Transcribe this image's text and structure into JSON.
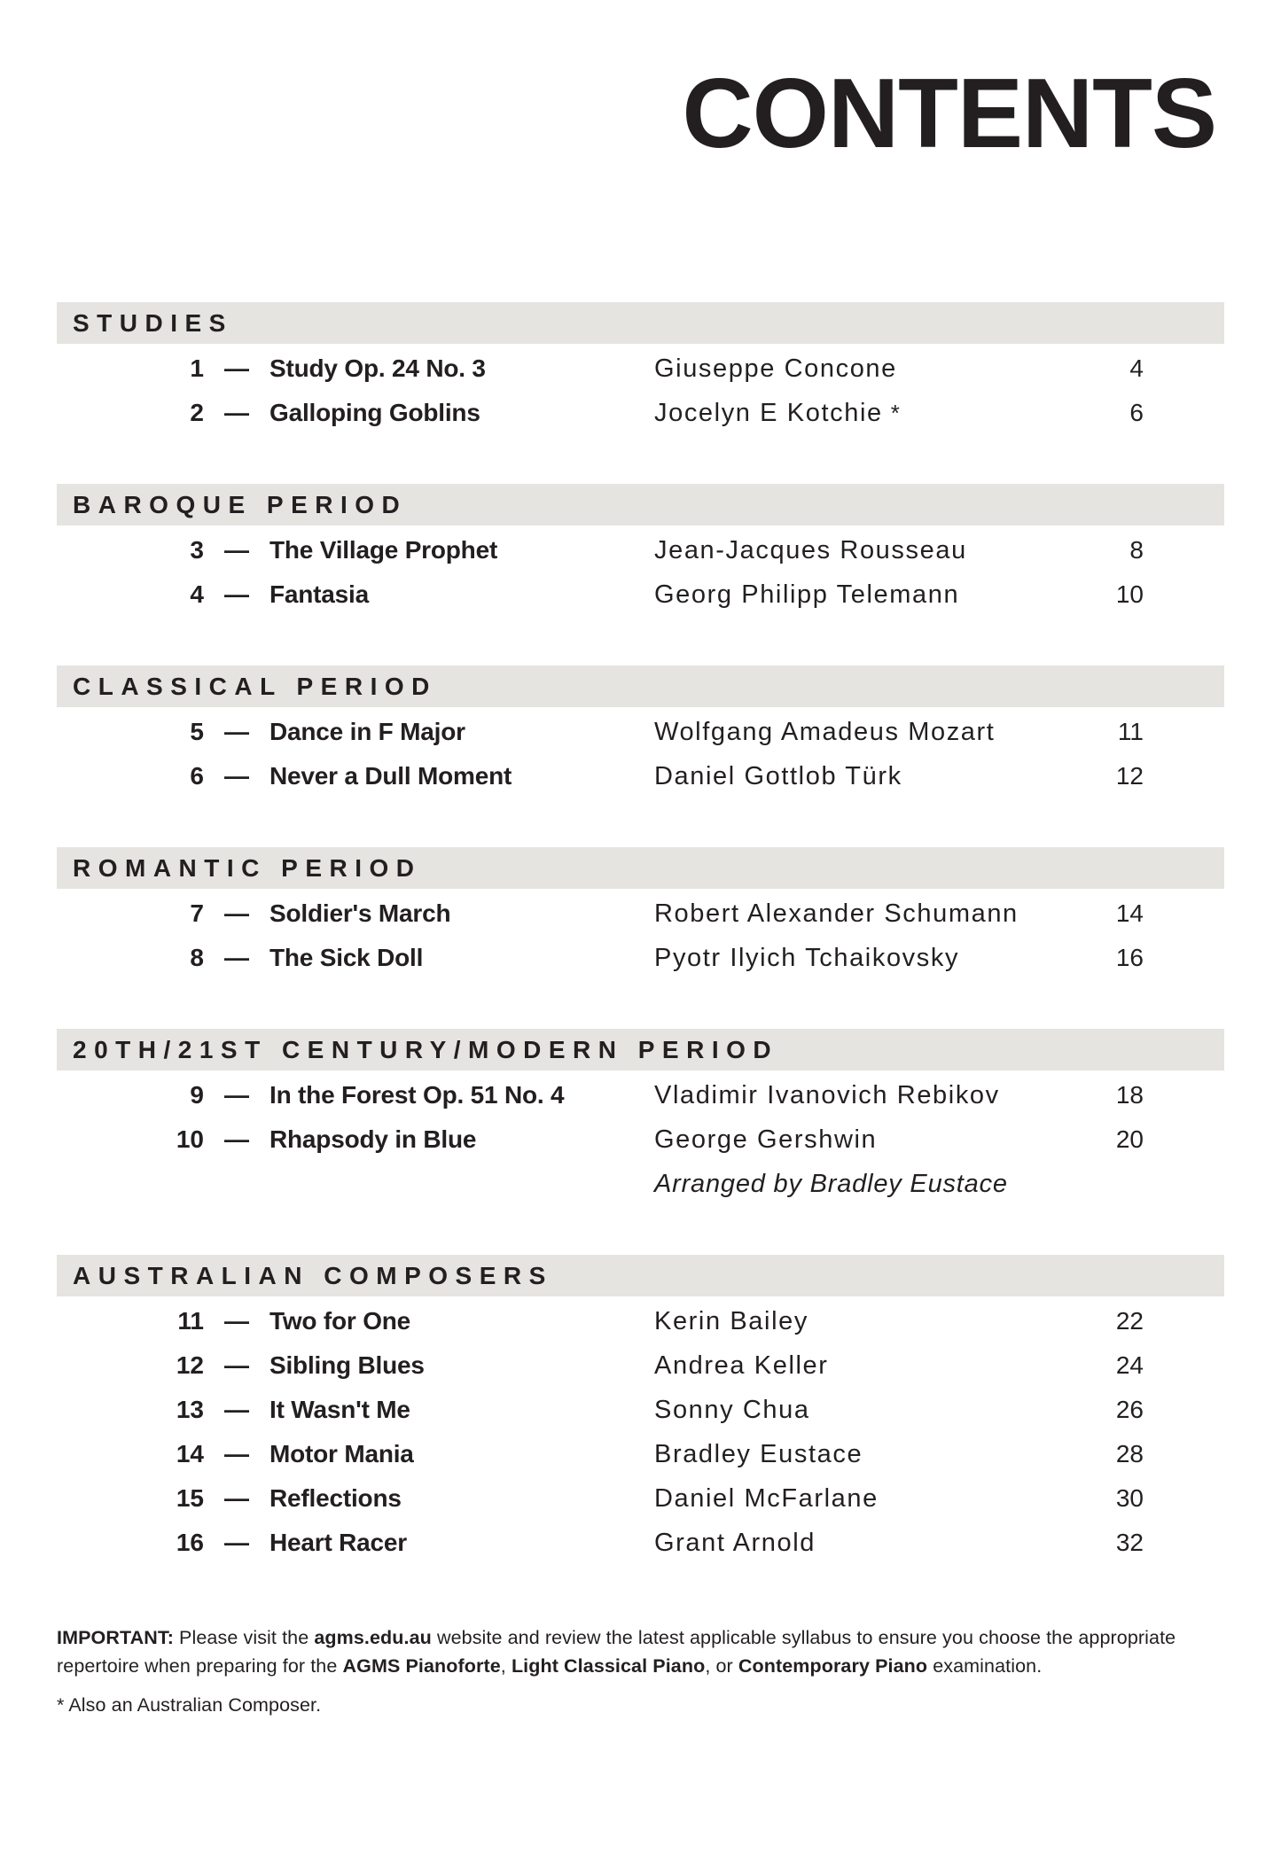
{
  "page_title": "CONTENTS",
  "sections": [
    {
      "heading": "STUDIES",
      "entries": [
        {
          "num": "1",
          "dash": "—",
          "title": "Study Op. 24 No. 3",
          "composer": "Giuseppe Concone",
          "suffix": "",
          "page": "4"
        },
        {
          "num": "2",
          "dash": "—",
          "title": "Galloping Goblins",
          "composer": "Jocelyn E Kotchie",
          "suffix": "*",
          "page": "6"
        }
      ]
    },
    {
      "heading": "BAROQUE PERIOD",
      "entries": [
        {
          "num": "3",
          "dash": "—",
          "title": "The Village Prophet",
          "composer": "Jean-Jacques Rousseau",
          "suffix": "",
          "page": "8"
        },
        {
          "num": "4",
          "dash": "—",
          "title": "Fantasia",
          "composer": "Georg Philipp Telemann",
          "suffix": "",
          "page": "10"
        }
      ]
    },
    {
      "heading": "CLASSICAL PERIOD",
      "entries": [
        {
          "num": "5",
          "dash": "—",
          "title": "Dance in F Major",
          "composer": "Wolfgang Amadeus Mozart",
          "suffix": "",
          "page": "11"
        },
        {
          "num": "6",
          "dash": "—",
          "title": "Never a Dull Moment",
          "composer": "Daniel Gottlob Türk",
          "suffix": "",
          "page": "12"
        }
      ]
    },
    {
      "heading": "ROMANTIC PERIOD",
      "entries": [
        {
          "num": "7",
          "dash": "—",
          "title": "Soldier's March",
          "composer": "Robert Alexander Schumann",
          "suffix": "",
          "page": "14"
        },
        {
          "num": "8",
          "dash": "—",
          "title": "The Sick Doll",
          "composer": "Pyotr Ilyich Tchaikovsky",
          "suffix": "",
          "page": "16"
        }
      ]
    },
    {
      "heading": "20TH/21ST CENTURY/MODERN PERIOD",
      "entries": [
        {
          "num": "9",
          "dash": "—",
          "title": "In the Forest Op. 51 No. 4",
          "composer": "Vladimir Ivanovich Rebikov",
          "suffix": "",
          "page": "18"
        },
        {
          "num": "10",
          "dash": "—",
          "title": "Rhapsody in Blue",
          "composer": "George Gershwin",
          "suffix": "",
          "page": "20",
          "arranger": "Arranged by Bradley Eustace"
        }
      ]
    },
    {
      "heading": "AUSTRALIAN COMPOSERS",
      "entries": [
        {
          "num": "11",
          "dash": "—",
          "title": "Two for One",
          "composer": "Kerin Bailey",
          "suffix": "",
          "page": "22"
        },
        {
          "num": "12",
          "dash": "—",
          "title": "Sibling Blues",
          "composer": "Andrea Keller",
          "suffix": "",
          "page": "24"
        },
        {
          "num": "13",
          "dash": "—",
          "title": "It Wasn't Me",
          "composer": "Sonny Chua",
          "suffix": "",
          "page": "26"
        },
        {
          "num": "14",
          "dash": "—",
          "title": "Motor Mania",
          "composer": "Bradley Eustace",
          "suffix": "",
          "page": "28"
        },
        {
          "num": "15",
          "dash": "—",
          "title": "Reflections",
          "composer": "Daniel McFarlane",
          "suffix": "",
          "page": "30"
        },
        {
          "num": "16",
          "dash": "—",
          "title": "Heart Racer",
          "composer": "Grant Arnold",
          "suffix": "",
          "page": "32"
        }
      ]
    }
  ],
  "footer": {
    "important_segments": [
      {
        "text": "IMPORTANT:",
        "bold": true
      },
      {
        "text": " Please visit the ",
        "bold": false
      },
      {
        "text": "agms.edu.au",
        "bold": true
      },
      {
        "text": " website and review the latest applicable syllabus to ensure you choose the appropriate",
        "bold": false
      },
      {
        "br": true
      },
      {
        "text": "repertoire when preparing for the ",
        "bold": false
      },
      {
        "text": "AGMS Pianoforte",
        "bold": true
      },
      {
        "text": ", ",
        "bold": false
      },
      {
        "text": "Light Classical Piano",
        "bold": true
      },
      {
        "text": ", or ",
        "bold": false
      },
      {
        "text": "Contemporary Piano",
        "bold": true
      },
      {
        "text": " examination.",
        "bold": false
      }
    ],
    "footnote": "* Also an Australian Composer."
  },
  "colors": {
    "text": "#231f20",
    "section_bar": "#e5e4e1",
    "background": "#ffffff"
  }
}
